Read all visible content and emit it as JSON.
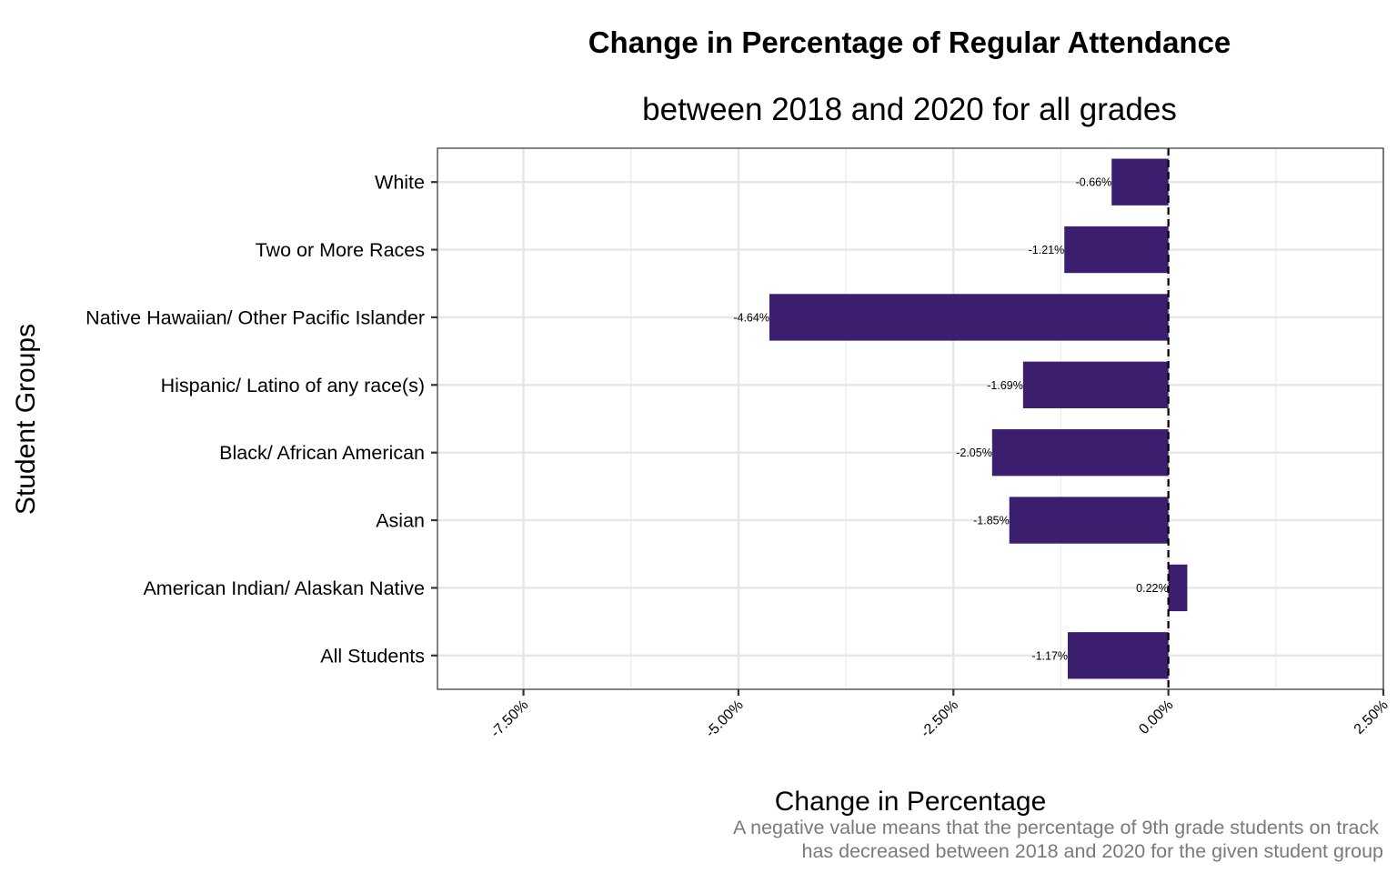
{
  "chart_data": {
    "type": "bar",
    "orientation": "horizontal",
    "title": "Change in Percentage of Regular Attendance",
    "subtitle": "between 2018 and 2020 for all grades",
    "xlabel": "Change in Percentage",
    "ylabel": "Student Groups",
    "caption_lines": [
      "A negative value means that the percentage of 9th grade students on track",
      "has decreased between 2018 and 2020 for the given student group"
    ],
    "categories": [
      "All Students",
      "American Indian/ Alaskan Native",
      "Asian",
      "Black/ African American",
      "Hispanic/ Latino of any race(s)",
      "Native Hawaiian/ Other Pacific Islander",
      "Two or More Races",
      "White"
    ],
    "values": [
      -1.17,
      0.22,
      -1.85,
      -2.05,
      -1.69,
      -4.64,
      -1.21,
      -0.66
    ],
    "value_labels": [
      "-1.17%",
      "0.22%",
      "-1.85%",
      "-2.05%",
      "-1.69%",
      "-4.64%",
      "-1.21%",
      "-0.66%"
    ],
    "xlim": [
      -8.5,
      2.5
    ],
    "xticks": [
      -7.5,
      -5.0,
      -2.5,
      0.0,
      2.5
    ],
    "xtick_labels": [
      "-7.50%",
      "-5.00%",
      "-2.50%",
      "0.00%",
      "2.50%"
    ],
    "reference_line": 0,
    "grid": true,
    "bar_color": "#3b1f6e"
  }
}
